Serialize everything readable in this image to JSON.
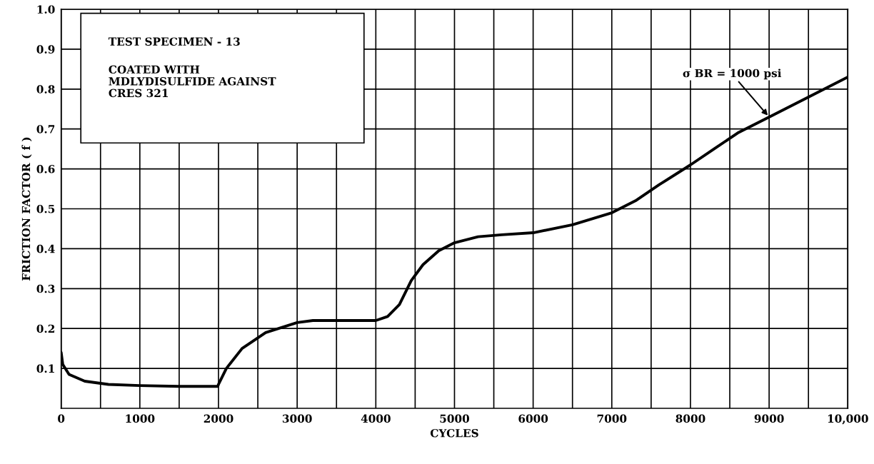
{
  "chart_data": {
    "type": "line",
    "xlabel": "CYCLES",
    "ylabel": "FRICTION FACTOR ( f )",
    "annotations": [
      "TEST SPECIMEN - 13",
      "COATED WITH\nMDLYDISULFIDE AGAINST\nCRES 321",
      {
        "text": "σ BR = 1000 psi",
        "x": 9000,
        "y": 0.73
      }
    ],
    "x": [
      0,
      20,
      100,
      300,
      600,
      1000,
      1500,
      1990,
      2000,
      2100,
      2300,
      2600,
      3000,
      3200,
      4000,
      4150,
      4300,
      4450,
      4600,
      4800,
      5000,
      5300,
      5600,
      6000,
      6500,
      7000,
      7300,
      7600,
      8000,
      8300,
      8600,
      9000,
      9500,
      10000
    ],
    "series": [
      {
        "color": "#000000",
        "values": [
          0.14,
          0.11,
          0.085,
          0.068,
          0.06,
          0.057,
          0.055,
          0.055,
          0.06,
          0.1,
          0.15,
          0.19,
          0.215,
          0.22,
          0.22,
          0.23,
          0.26,
          0.32,
          0.36,
          0.395,
          0.415,
          0.43,
          0.435,
          0.44,
          0.46,
          0.49,
          0.52,
          0.56,
          0.61,
          0.65,
          0.69,
          0.73,
          0.78,
          0.83
        ]
      }
    ],
    "xlim": [
      0,
      10000
    ],
    "ylim": [
      0,
      1.0
    ],
    "xticks": [
      0,
      {
        "value": 500,
        "label": null
      },
      1000,
      {
        "value": 1500,
        "label": null
      },
      2000,
      {
        "value": 2500,
        "label": null
      },
      3000,
      {
        "value": 3500,
        "label": null
      },
      4000,
      {
        "value": 4500,
        "label": null
      },
      5000,
      {
        "value": 5500,
        "label": null
      },
      6000,
      {
        "value": 6500,
        "label": null
      },
      7000,
      {
        "value": 7500,
        "label": null
      },
      8000,
      {
        "value": 8500,
        "label": null
      },
      9000,
      {
        "value": 9500,
        "label": null
      },
      {
        "value": 10000,
        "label": "10,000"
      }
    ],
    "yticks": [
      0.1,
      0.2,
      0.3,
      0.4,
      0.5,
      0.6,
      0.7,
      0.8,
      0.9,
      {
        "value": 1.0,
        "label": "1.0"
      }
    ],
    "grid": true,
    "marker": "none",
    "line_style": "solid",
    "legend": false
  }
}
